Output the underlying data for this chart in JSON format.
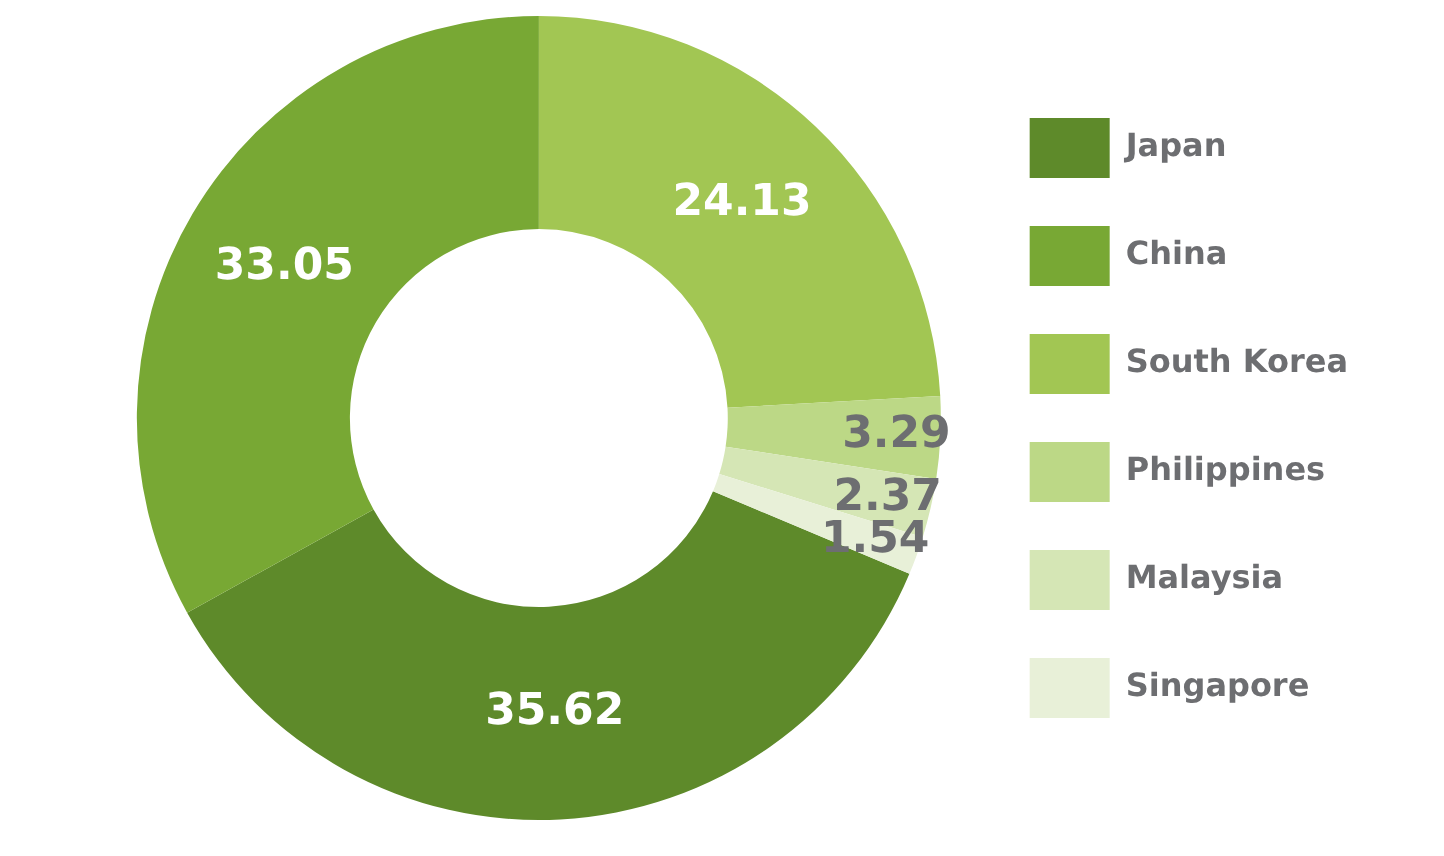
{
  "chart_data": {
    "type": "donut",
    "categories": [
      "Japan",
      "China",
      "South Korea",
      "Philippines",
      "Malaysia",
      "Singapore"
    ],
    "values": [
      35.62,
      33.05,
      24.13,
      3.29,
      2.37,
      1.54
    ],
    "colors": [
      "#5e8a2a",
      "#78a834",
      "#a2c653",
      "#bcd886",
      "#d5e6b5",
      "#e8f0d8"
    ],
    "data_labels": true,
    "legend": "right"
  }
}
